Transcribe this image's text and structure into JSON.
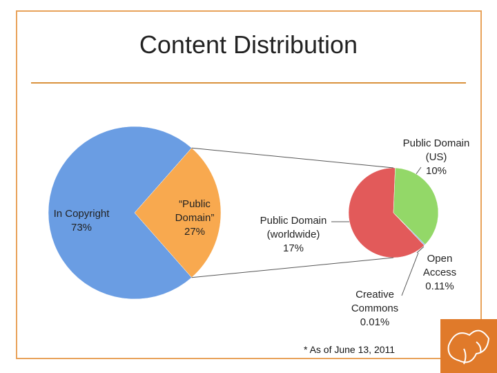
{
  "chart_data": {
    "type": "pie-of-pie",
    "title": "Content Distribution",
    "pie": {
      "categories": [
        "In Copyright",
        "“Public Domain”"
      ],
      "values": [
        73,
        27
      ],
      "value_labels": [
        "73%",
        "27%"
      ],
      "colors": [
        "#6a9de3",
        "#f8a94f"
      ]
    },
    "sub_pie": {
      "categories": [
        "Public Domain (worldwide)",
        "Public Domain (US)",
        "Open Access",
        "Creative Commons"
      ],
      "values": [
        17,
        10,
        0.11,
        0.01
      ],
      "value_labels": [
        "17%",
        "10%",
        "0.11%",
        "0.01%"
      ],
      "colors": [
        "#e25a5a",
        "#93d868",
        "#7fb0e8",
        "#c89be0"
      ]
    },
    "footnote": "* As of June 13, 2011"
  }
}
